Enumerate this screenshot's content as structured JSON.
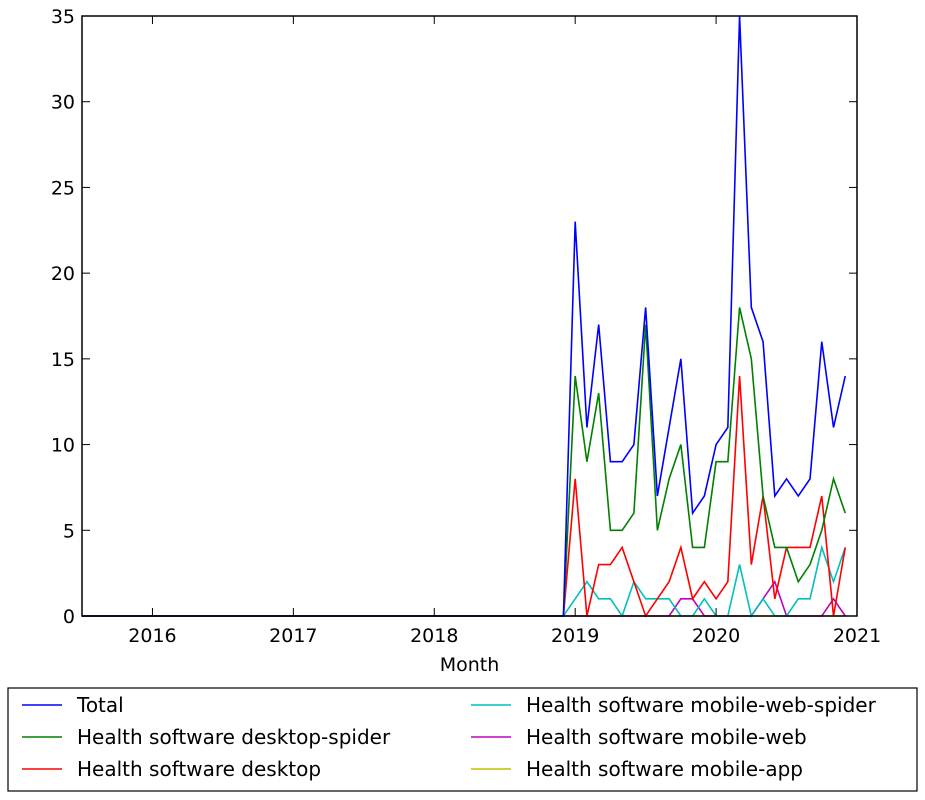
{
  "chart_data": {
    "type": "line",
    "title": "",
    "xlabel": "Month",
    "ylabel": "",
    "xlim": [
      "2015-07",
      "2021-01"
    ],
    "ylim": [
      0,
      35
    ],
    "x_ticks": [
      "2016",
      "2017",
      "2018",
      "2019",
      "2020",
      "2021"
    ],
    "y_ticks": [
      "0",
      "5",
      "10",
      "15",
      "20",
      "25",
      "30",
      "35"
    ],
    "grid": false,
    "legend_placement": "below",
    "x": [
      "2015-07",
      "2018-12",
      "2019-01",
      "2019-02",
      "2019-03",
      "2019-04",
      "2019-05",
      "2019-06",
      "2019-07",
      "2019-08",
      "2019-09",
      "2019-10",
      "2019-11",
      "2019-12",
      "2020-01",
      "2020-02",
      "2020-03",
      "2020-04",
      "2020-05",
      "2020-06",
      "2020-07",
      "2020-08",
      "2020-09",
      "2020-10",
      "2020-11",
      "2020-12",
      "2021-01"
    ],
    "series": [
      {
        "name": "Total",
        "color": "#0000ff",
        "values": [
          0,
          0,
          23,
          11,
          17,
          9,
          9,
          10,
          18,
          7,
          11,
          15,
          6,
          7,
          10,
          11,
          35,
          18,
          16,
          7,
          8,
          7,
          8,
          16,
          11,
          14,
          null
        ]
      },
      {
        "name": "Health software desktop-spider",
        "color": "#008000",
        "values": [
          0,
          0,
          14,
          9,
          13,
          5,
          5,
          6,
          17,
          5,
          8,
          10,
          4,
          4,
          9,
          9,
          18,
          15,
          7,
          4,
          4,
          2,
          3,
          5,
          8,
          6,
          null
        ]
      },
      {
        "name": "Health software desktop",
        "color": "#ff0000",
        "values": [
          0,
          0,
          8,
          0,
          3,
          3,
          4,
          2,
          0,
          1,
          2,
          4,
          1,
          2,
          1,
          2,
          14,
          3,
          7,
          1,
          4,
          4,
          4,
          7,
          0,
          4,
          null
        ]
      },
      {
        "name": "Health software mobile-web-spider",
        "color": "#00bfbf",
        "values": [
          0,
          0,
          1,
          2,
          1,
          1,
          0,
          2,
          1,
          1,
          1,
          0,
          0,
          1,
          0,
          0,
          3,
          0,
          1,
          0,
          0,
          1,
          1,
          4,
          2,
          4,
          null
        ]
      },
      {
        "name": "Health software mobile-web",
        "color": "#bf00bf",
        "values": [
          0,
          0,
          0,
          0,
          0,
          0,
          0,
          0,
          0,
          0,
          0,
          1,
          1,
          0,
          0,
          0,
          0,
          0,
          1,
          2,
          0,
          0,
          0,
          0,
          1,
          0,
          null
        ]
      },
      {
        "name": "Health software mobile-app",
        "color": "#bfbf00",
        "values": [
          0,
          0,
          0,
          0,
          0,
          0,
          0,
          0,
          0,
          0,
          0,
          0,
          0,
          0,
          0,
          0,
          0,
          0,
          0,
          0,
          0,
          0,
          0,
          0,
          0,
          0,
          null
        ]
      }
    ]
  }
}
